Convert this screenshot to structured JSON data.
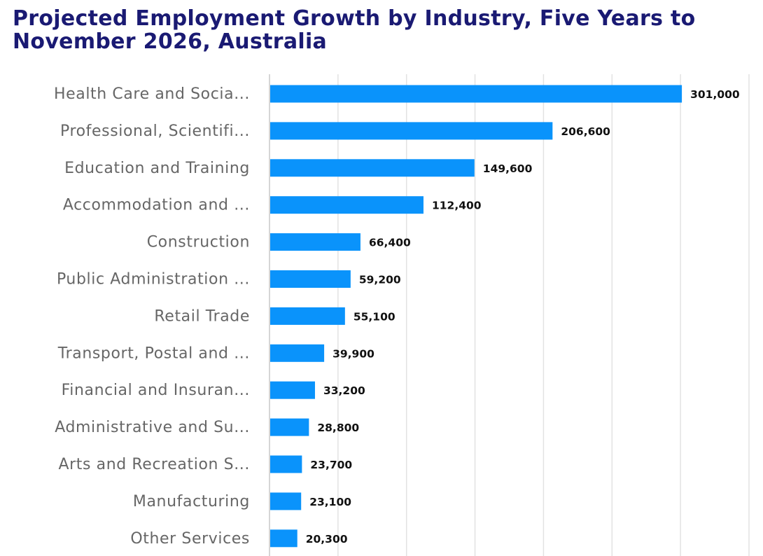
{
  "chart_data": {
    "type": "bar",
    "orientation": "horizontal",
    "title": "Projected Employment Growth by Industry, Five Years to November 2026, Australia",
    "xlabel": "",
    "ylabel": "",
    "xlim": [
      0,
      350000
    ],
    "grid": true,
    "bar_color": "#0a93fb",
    "title_color": "#1a1a73",
    "categories": [
      "Health Care and Socia...",
      "Professional, Scientifi...",
      "Education and Training",
      "Accommodation and ...",
      "Construction",
      "Public Administration ...",
      "Retail Trade",
      "Transport, Postal and ...",
      "Financial and Insuran...",
      "Administrative and Su...",
      "Arts and Recreation S...",
      "Manufacturing",
      "Other Services"
    ],
    "values": [
      301000,
      206600,
      149600,
      112400,
      66400,
      59200,
      55100,
      39900,
      33200,
      28800,
      23700,
      23100,
      20300
    ],
    "value_labels": [
      "301,000",
      "206,600",
      "149,600",
      "112,400",
      "66,400",
      "59,200",
      "55,100",
      "39,900",
      "33,200",
      "28,800",
      "23,700",
      "23,100",
      "20,300"
    ]
  }
}
